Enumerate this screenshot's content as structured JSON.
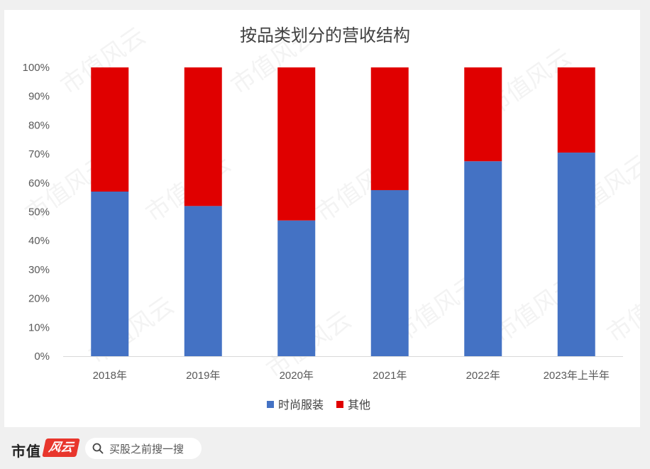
{
  "chart_data": {
    "type": "bar",
    "stacked": "100%",
    "title": "按品类划分的营收结构",
    "categories": [
      "2018年",
      "2019年",
      "2020年",
      "2021年",
      "2022年",
      "2023年上半年"
    ],
    "series": [
      {
        "name": "时尚服装",
        "color": "#4472c4",
        "values": [
          57,
          52,
          47,
          57.5,
          67.5,
          70.5
        ]
      },
      {
        "name": "其他",
        "color": "#e00000",
        "values": [
          43,
          48,
          53,
          42.5,
          32.5,
          29.5
        ]
      }
    ],
    "ylim": [
      0,
      100
    ],
    "yticks": [
      "0%",
      "10%",
      "20%",
      "30%",
      "40%",
      "50%",
      "60%",
      "70%",
      "80%",
      "90%",
      "100%"
    ],
    "legend_position": "bottom",
    "grid": false
  },
  "watermark": "市值风云",
  "footer": {
    "brand": "市值",
    "logo_text": "风云",
    "search_text": "买股之前搜一搜"
  }
}
